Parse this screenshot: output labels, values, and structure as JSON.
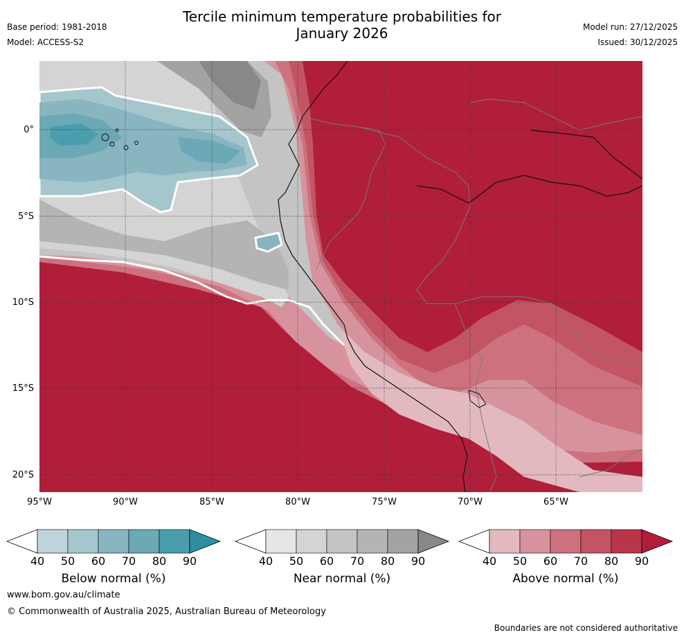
{
  "title_line1": "Tercile minimum temperature probabilities for",
  "title_line2": "January 2026",
  "base_period": "Base period: 1981-2018",
  "model": "Model: ACCESS-S2",
  "model_run": "Model run: 27/12/2025",
  "issued": "Issued: 30/12/2025",
  "lat_labels": [
    "0°",
    "5°S",
    "10°S",
    "15°S",
    "20°S"
  ],
  "lon_labels": [
    "95°W",
    "90°W",
    "85°W",
    "80°W",
    "75°W",
    "70°W",
    "65°W"
  ],
  "colorbars": [
    {
      "title": "Below normal (%)",
      "ticks": [
        "40",
        "50",
        "60",
        "70",
        "80",
        "90"
      ],
      "colors": [
        "#bfd4da",
        "#a6c6cd",
        "#88b5c0",
        "#6aa9b5",
        "#4a9dad",
        "#2e8fa3"
      ]
    },
    {
      "title": "Near normal (%)",
      "ticks": [
        "40",
        "50",
        "60",
        "70",
        "80",
        "90"
      ],
      "colors": [
        "#e6e6e6",
        "#d4d4d4",
        "#c4c4c4",
        "#b4b4b4",
        "#a3a3a3",
        "#888888"
      ]
    },
    {
      "title": "Above normal (%)",
      "ticks": [
        "40",
        "50",
        "60",
        "70",
        "80",
        "90"
      ],
      "colors": [
        "#e2b9bf",
        "#d7939d",
        "#cd717e",
        "#c35463",
        "#b9364a",
        "#b01e3a"
      ]
    }
  ],
  "website": "www.bom.gov.au/climate",
  "copyright": "© Commonwealth of Australia 2025, Australian Bureau of Meteorology",
  "disclaimer": "Boundaries are not considered authoritative"
}
